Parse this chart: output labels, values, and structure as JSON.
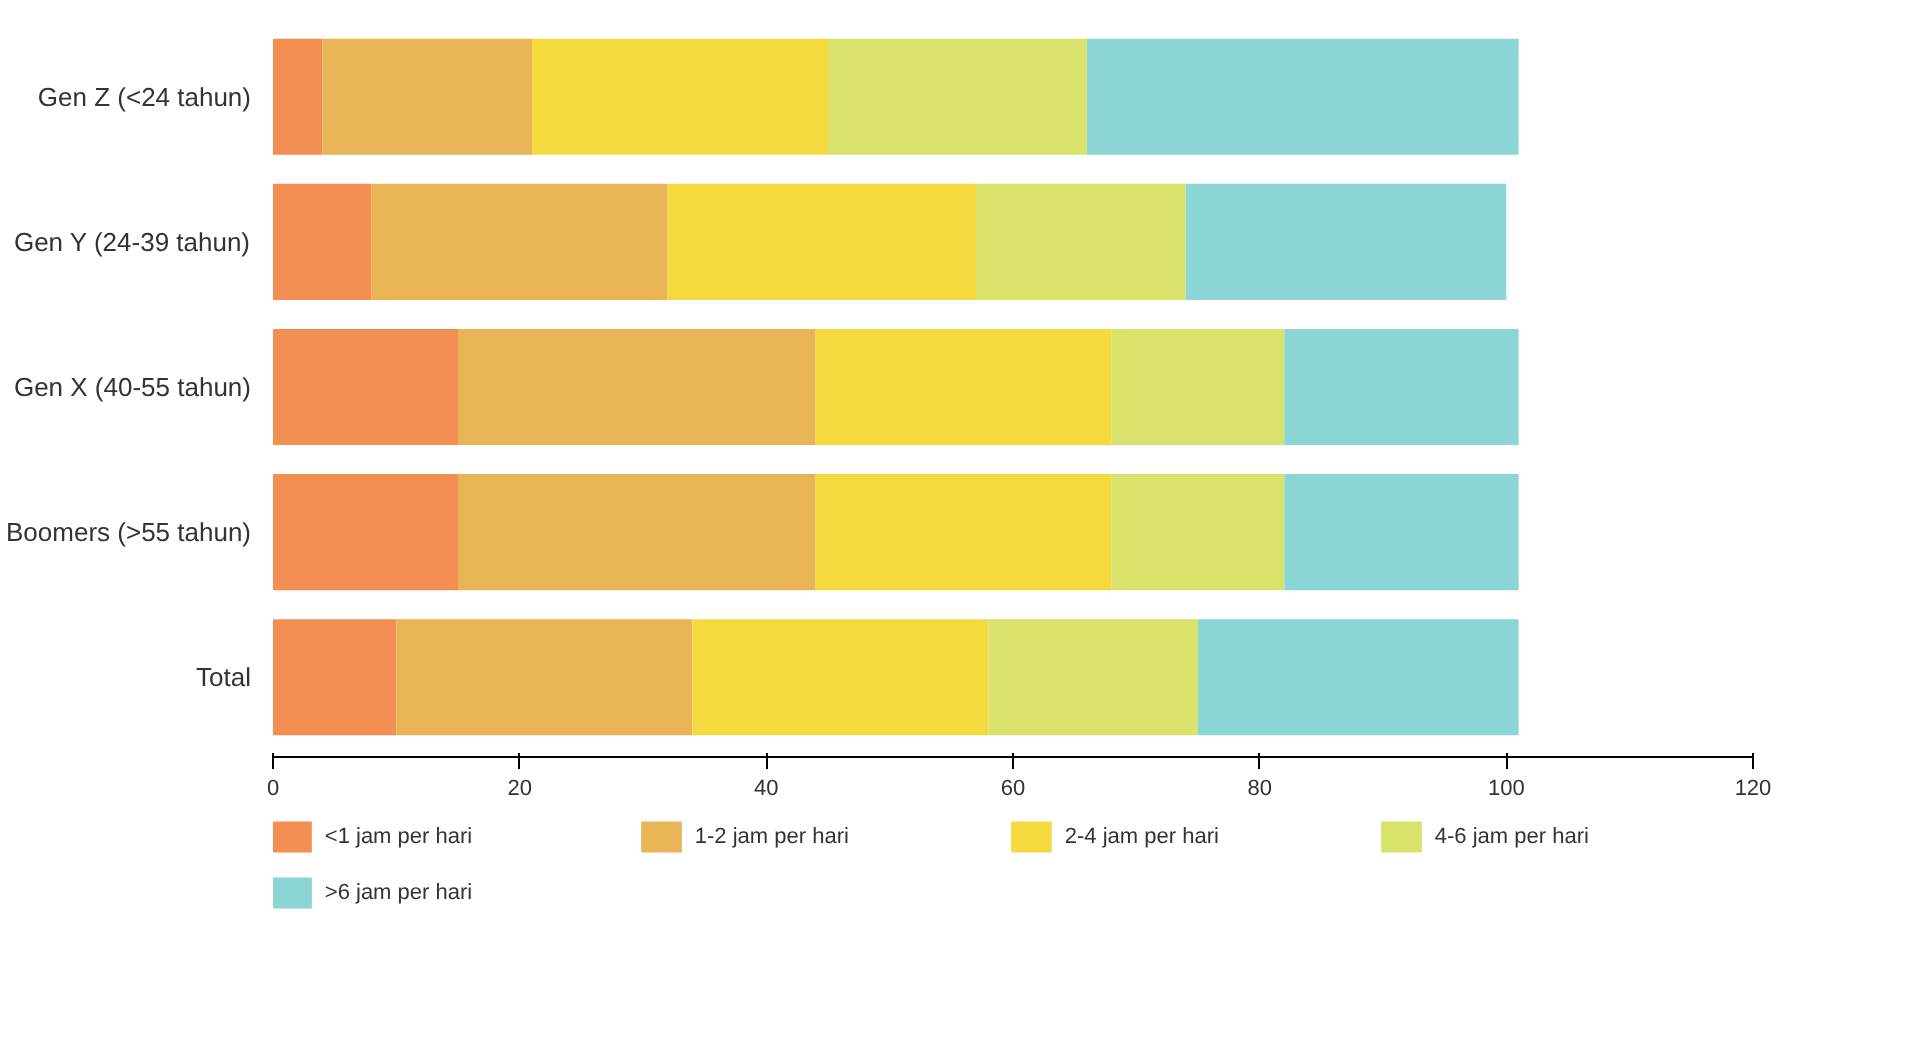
{
  "chart_data": {
    "type": "bar",
    "orientation": "horizontal",
    "stacked": true,
    "categories": [
      "Gen Z (<24 tahun)",
      "Gen Y (24-39 tahun)",
      "Gen X (40-55 tahun)",
      "Boomers (>55 tahun)",
      "Total"
    ],
    "series": [
      {
        "name": "<1 jam per hari",
        "color": "#f48f53",
        "values": [
          4,
          8,
          15,
          15,
          10
        ]
      },
      {
        "name": "1-2 jam per hari",
        "color": "#e8b455",
        "values": [
          17,
          24,
          29,
          29,
          24
        ]
      },
      {
        "name": "2-4 jam per hari",
        "color": "#f5da3f",
        "values": [
          24,
          25,
          24,
          24,
          24
        ]
      },
      {
        "name": "4-6 jam per hari",
        "color": "#d9e26a",
        "values": [
          21,
          17,
          14,
          14,
          17
        ]
      },
      {
        "name": ">6 jam per hari",
        "color": "#8bd5d4",
        "values": [
          35,
          26,
          19,
          19,
          26
        ]
      }
    ],
    "xlim": [
      0,
      120
    ],
    "xticks": [
      0,
      20,
      40,
      60,
      80,
      100,
      120
    ],
    "grid": false,
    "legend": "bottom"
  }
}
